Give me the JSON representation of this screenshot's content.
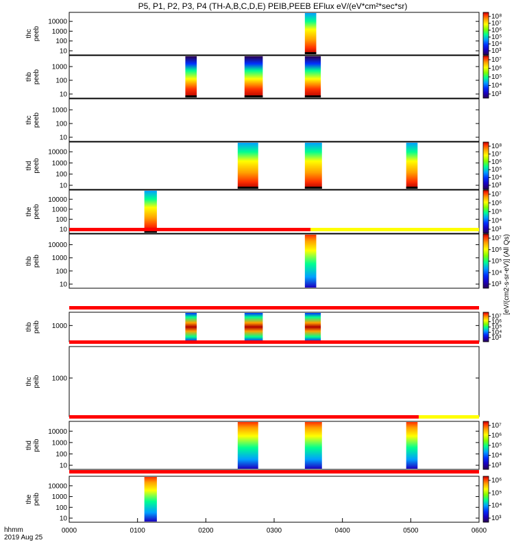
{
  "chart_data": {
    "type": "heatmap",
    "title": "P5, P1, P2, P3, P4 (TH-A,B,C,D,E) PEIB,PEEB EFlux eV/(eV*cm²*sec*sr)",
    "x_ticks": [
      "0000",
      "0100",
      "0200",
      "0300",
      "0400",
      "0500",
      "0600"
    ],
    "xlim_minutes": [
      0,
      360
    ],
    "xlabel_lines": [
      "hhmm",
      "2019 Aug 25"
    ],
    "colorbar_title": "[eV/(cm2-s-sr-eV)] (All Qs)",
    "colormap": [
      "#2a0050",
      "#1a00c0",
      "#0030ff",
      "#00a0ff",
      "#00ff90",
      "#80ff00",
      "#ffff00",
      "#ffa000",
      "#ff3000",
      "#b00000"
    ],
    "flag_colors": {
      "red": "#ff0000",
      "yellow": "#ffff00",
      "black": "#000000"
    },
    "panels": [
      {
        "probe": "thc",
        "product": "peeb",
        "y_ticks": [
          "10",
          "100",
          "1000",
          "10000"
        ],
        "cbar_ticks": [
          "10³",
          "10⁴",
          "10⁵",
          "10⁶",
          "10⁷",
          "10⁸"
        ],
        "intervals": [
          [
            207,
            217
          ]
        ]
      },
      {
        "probe": "thb",
        "product": "peeb",
        "y_ticks": [
          "10",
          "100",
          "1000"
        ],
        "cbar_ticks": [
          "10³",
          "10⁴",
          "10⁵",
          "10⁶",
          "10⁷"
        ],
        "intervals": [
          [
            102,
            112
          ],
          [
            154,
            170
          ],
          [
            207,
            221
          ]
        ]
      },
      {
        "probe": "thc",
        "product": "peeb",
        "y_ticks": [
          "10",
          "100",
          "1000"
        ],
        "cbar_ticks": [],
        "intervals": []
      },
      {
        "probe": "thd",
        "product": "peeb",
        "y_ticks": [
          "10",
          "100",
          "1000",
          "10000"
        ],
        "cbar_ticks": [
          "10³",
          "10⁴",
          "10⁵",
          "10⁶",
          "10⁷",
          "10⁸"
        ],
        "intervals": [
          [
            148,
            166
          ],
          [
            207,
            222
          ],
          [
            296,
            306
          ]
        ]
      },
      {
        "probe": "the",
        "product": "peeb",
        "y_ticks": [
          "10",
          "100",
          "1000",
          "10000"
        ],
        "cbar_ticks": [
          "10³",
          "10⁴",
          "10⁵",
          "10⁶",
          "10⁷"
        ],
        "intervals": [
          [
            66,
            77
          ]
        ]
      },
      {
        "probe": "thb",
        "product": "peib",
        "y_ticks": [
          "10",
          "100",
          "1000",
          "10000"
        ],
        "cbar_ticks": [
          "10³",
          "10⁴",
          "10⁵",
          "10⁶",
          "10⁷"
        ],
        "intervals": [
          [
            207,
            217
          ]
        ],
        "top_flag": {
          "red": [
            0,
            212
          ],
          "yellow": [
            212,
            360
          ]
        }
      },
      {
        "probe": "thb",
        "product": "peib",
        "y_ticks": [
          "1000"
        ],
        "cbar_ticks": [
          "10³",
          "10⁴",
          "10⁵",
          "10⁶",
          "10⁷"
        ],
        "intervals": [
          [
            102,
            112
          ],
          [
            154,
            170
          ],
          [
            207,
            221
          ]
        ],
        "top_flag": {
          "red": [
            0,
            360
          ]
        }
      },
      {
        "probe": "thc",
        "product": "peib",
        "y_ticks": [
          "1000"
        ],
        "cbar_ticks": [],
        "intervals": [],
        "top_flag": {
          "red": [
            0,
            360
          ]
        }
      },
      {
        "probe": "thd",
        "product": "peib",
        "y_ticks": [
          "10",
          "100",
          "1000",
          "10000"
        ],
        "cbar_ticks": [
          "10³",
          "10⁴",
          "10⁵",
          "10⁶",
          "10⁷"
        ],
        "intervals": [
          [
            148,
            166
          ],
          [
            207,
            222
          ],
          [
            296,
            306
          ]
        ],
        "top_flag": {
          "red": [
            0,
            307
          ],
          "yellow": [
            307,
            360
          ]
        }
      },
      {
        "probe": "the",
        "product": "peib",
        "y_ticks": [
          "10",
          "100",
          "1000",
          "10000"
        ],
        "cbar_ticks": [
          "10³",
          "10⁴",
          "10⁵",
          "10⁶"
        ],
        "intervals": [
          [
            66,
            77
          ]
        ],
        "top_flag": {
          "red": [
            0,
            360
          ]
        }
      }
    ]
  }
}
